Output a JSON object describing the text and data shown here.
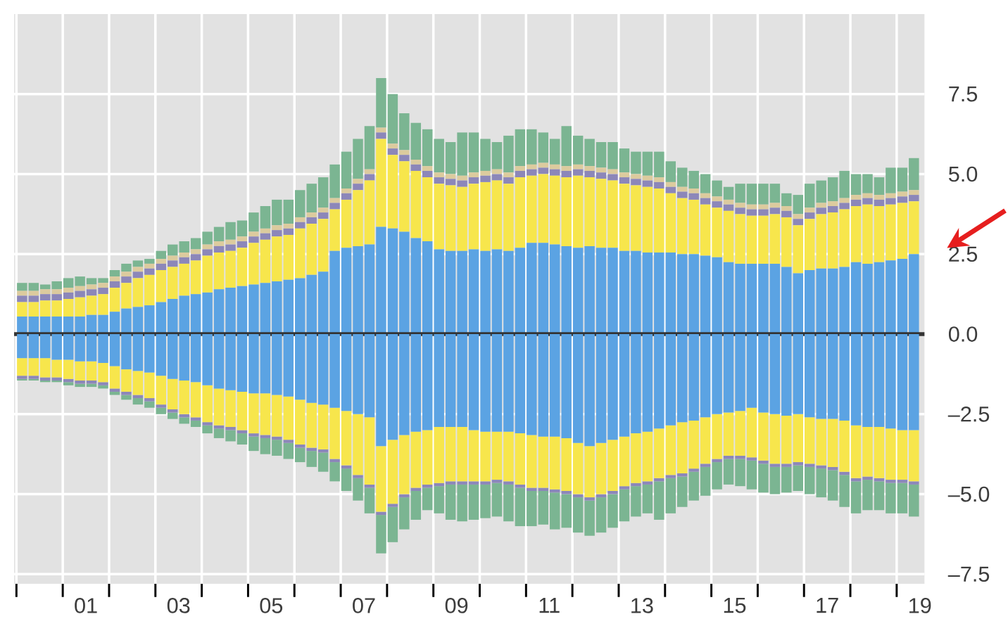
{
  "chart_data": {
    "type": "bar",
    "stacked": true,
    "grid": true,
    "x": [
      "2000-02-15",
      "2000-05-15",
      "2000-08-15",
      "2000-11-15",
      "2001-02-15",
      "2001-05-15",
      "2001-08-15",
      "2001-11-15",
      "2002-02-15",
      "2002-05-15",
      "2002-08-15",
      "2002-11-15",
      "2003-02-15",
      "2003-05-15",
      "2003-08-15",
      "2003-11-15",
      "2004-02-15",
      "2004-05-15",
      "2004-08-15",
      "2004-11-15",
      "2005-02-15",
      "2005-05-15",
      "2005-08-15",
      "2005-11-15",
      "2006-02-15",
      "2006-05-15",
      "2006-08-15",
      "2006-11-15",
      "2007-02-15",
      "2007-05-15",
      "2007-08-15",
      "2007-11-15",
      "2008-02-15",
      "2008-05-15",
      "2008-08-15",
      "2008-11-15",
      "2009-02-15",
      "2009-05-15",
      "2009-08-15",
      "2009-11-15",
      "2010-02-15",
      "2010-05-15",
      "2010-08-15",
      "2010-11-15",
      "2011-02-15",
      "2011-05-15",
      "2011-08-15",
      "2011-11-15",
      "2012-02-15",
      "2012-05-15",
      "2012-08-15",
      "2012-11-15",
      "2013-02-15",
      "2013-05-15",
      "2013-08-15",
      "2013-11-15",
      "2014-02-15",
      "2014-05-15",
      "2014-08-15",
      "2014-11-15",
      "2015-02-15",
      "2015-05-15",
      "2015-08-15",
      "2015-11-15",
      "2016-02-15",
      "2016-05-15",
      "2016-08-15",
      "2016-11-15",
      "2017-02-15",
      "2017-05-15",
      "2017-08-15",
      "2017-11-15",
      "2018-02-15",
      "2018-05-15",
      "2018-08-15",
      "2018-11-15",
      "2019-02-15",
      "2019-05-15"
    ],
    "xlim": [
      "1999-12-13",
      "2019-08-07"
    ],
    "xticks": [
      {
        "value": "2000-01-01",
        "label": null
      },
      {
        "value": "2001-01-01",
        "label": null
      },
      {
        "value": "2002-01-01",
        "label": null
      },
      {
        "value": "2003-01-01",
        "label": null
      },
      {
        "value": "2004-01-01",
        "label": null
      },
      {
        "value": "2005-01-01",
        "label": null
      },
      {
        "value": "2006-01-01",
        "label": null
      },
      {
        "value": "2007-01-01",
        "label": null
      },
      {
        "value": "2008-01-01",
        "label": null
      },
      {
        "value": "2009-01-01",
        "label": null
      },
      {
        "value": "2010-01-01",
        "label": null
      },
      {
        "value": "2011-01-01",
        "label": null
      },
      {
        "value": "2012-01-01",
        "label": null
      },
      {
        "value": "2013-01-01",
        "label": null
      },
      {
        "value": "2014-01-01",
        "label": null
      },
      {
        "value": "2015-01-01",
        "label": null
      },
      {
        "value": "2016-01-01",
        "label": null
      },
      {
        "value": "2017-01-01",
        "label": null
      },
      {
        "value": "2018-01-01",
        "label": null
      },
      {
        "value": "2019-01-01",
        "label": null
      },
      {
        "value": "2001-07-01",
        "label": "01"
      },
      {
        "value": "2003-07-01",
        "label": "03"
      },
      {
        "value": "2005-07-01",
        "label": "05"
      },
      {
        "value": "2007-07-01",
        "label": "07"
      },
      {
        "value": "2009-07-01",
        "label": "09"
      },
      {
        "value": "2011-07-01",
        "label": "11"
      },
      {
        "value": "2013-07-01",
        "label": "13"
      },
      {
        "value": "2015-07-01",
        "label": "15"
      },
      {
        "value": "2017-07-01",
        "label": "17"
      },
      {
        "value": "2019-07-01",
        "label": "19"
      }
    ],
    "ylim": [
      -7.8,
      10
    ],
    "yticks": [
      {
        "value": -7.5,
        "label": "–7.5"
      },
      {
        "value": -5,
        "label": "–5.0"
      },
      {
        "value": -2.5,
        "label": "–2.5"
      },
      {
        "value": 0,
        "label": "0.0"
      },
      2.5,
      {
        "value": 5,
        "label": "5.0"
      },
      7.5
    ],
    "ref_lines": [
      {
        "axis": "y",
        "value": 0,
        "color": "#333333"
      }
    ],
    "series": [
      {
        "color": "#5ba3e3",
        "values": [
          0.55,
          0.55,
          0.55,
          0.55,
          0.55,
          0.55,
          0.6,
          0.6,
          0.7,
          0.8,
          0.85,
          0.9,
          1.0,
          1.1,
          1.2,
          1.25,
          1.3,
          1.4,
          1.45,
          1.5,
          1.55,
          1.6,
          1.65,
          1.7,
          1.75,
          1.85,
          1.95,
          2.6,
          2.7,
          2.75,
          2.8,
          3.35,
          3.3,
          3.2,
          3.0,
          2.9,
          2.65,
          2.6,
          2.6,
          2.65,
          2.6,
          2.65,
          2.6,
          2.7,
          2.85,
          2.85,
          2.8,
          2.75,
          2.7,
          2.75,
          2.7,
          2.7,
          2.6,
          2.6,
          2.55,
          2.55,
          2.55,
          2.5,
          2.5,
          2.45,
          2.4,
          2.25,
          2.2,
          2.2,
          2.2,
          2.2,
          2.1,
          1.9,
          2.0,
          2.05,
          2.05,
          2.1,
          2.25,
          2.2,
          2.25,
          2.3,
          2.35,
          2.5
        ]
      },
      {
        "color": "#f7e64c",
        "values": [
          0.45,
          0.45,
          0.5,
          0.5,
          0.55,
          0.6,
          0.6,
          0.65,
          0.75,
          0.8,
          0.9,
          0.95,
          1.0,
          1.0,
          1.0,
          1.05,
          1.15,
          1.15,
          1.15,
          1.2,
          1.3,
          1.35,
          1.4,
          1.4,
          1.55,
          1.6,
          1.65,
          1.3,
          1.5,
          1.75,
          2.0,
          2.75,
          2.3,
          2.2,
          2.1,
          2.0,
          2.05,
          2.05,
          2.0,
          2.05,
          2.15,
          2.15,
          2.1,
          2.2,
          2.1,
          2.15,
          2.15,
          2.15,
          2.25,
          2.15,
          2.15,
          2.1,
          2.1,
          2.05,
          2.05,
          2.0,
          1.85,
          1.75,
          1.7,
          1.6,
          1.55,
          1.6,
          1.55,
          1.5,
          1.5,
          1.55,
          1.55,
          1.5,
          1.6,
          1.7,
          1.75,
          1.8,
          1.75,
          1.85,
          1.75,
          1.75,
          1.75,
          1.65
        ]
      },
      {
        "color": "#8c87b9",
        "values": [
          0.2,
          0.2,
          0.2,
          0.2,
          0.2,
          0.2,
          0.2,
          0.2,
          0.2,
          0.2,
          0.2,
          0.2,
          0.2,
          0.2,
          0.2,
          0.2,
          0.2,
          0.2,
          0.2,
          0.2,
          0.2,
          0.2,
          0.2,
          0.2,
          0.2,
          0.2,
          0.2,
          0.2,
          0.2,
          0.2,
          0.2,
          0.2,
          0.2,
          0.2,
          0.2,
          0.2,
          0.2,
          0.2,
          0.2,
          0.2,
          0.2,
          0.2,
          0.2,
          0.2,
          0.2,
          0.2,
          0.2,
          0.2,
          0.2,
          0.2,
          0.2,
          0.2,
          0.2,
          0.2,
          0.2,
          0.2,
          0.2,
          0.2,
          0.2,
          0.2,
          0.2,
          0.2,
          0.2,
          0.2,
          0.2,
          0.2,
          0.2,
          0.2,
          0.2,
          0.2,
          0.2,
          0.2,
          0.2,
          0.2,
          0.2,
          0.2,
          0.2,
          0.2
        ]
      },
      {
        "color": "#dccb9e",
        "values": [
          0.15,
          0.15,
          0.15,
          0.15,
          0.15,
          0.15,
          0.15,
          0.15,
          0.15,
          0.15,
          0.15,
          0.15,
          0.15,
          0.15,
          0.15,
          0.15,
          0.15,
          0.15,
          0.15,
          0.15,
          0.15,
          0.15,
          0.15,
          0.15,
          0.15,
          0.15,
          0.15,
          0.15,
          0.15,
          0.15,
          0.15,
          0.15,
          0.15,
          0.15,
          0.15,
          0.15,
          0.15,
          0.15,
          0.15,
          0.15,
          0.15,
          0.15,
          0.15,
          0.15,
          0.15,
          0.15,
          0.15,
          0.15,
          0.15,
          0.15,
          0.15,
          0.15,
          0.15,
          0.15,
          0.15,
          0.15,
          0.15,
          0.15,
          0.15,
          0.15,
          0.15,
          0.15,
          0.15,
          0.15,
          0.15,
          0.15,
          0.15,
          0.15,
          0.15,
          0.15,
          0.15,
          0.15,
          0.15,
          0.15,
          0.15,
          0.15,
          0.15,
          0.15
        ]
      },
      {
        "color": "#7bb592",
        "values": [
          0.25,
          0.25,
          0.15,
          0.25,
          0.3,
          0.3,
          0.2,
          0.15,
          0.2,
          0.25,
          0.2,
          0.15,
          0.25,
          0.35,
          0.35,
          0.35,
          0.4,
          0.45,
          0.55,
          0.5,
          0.6,
          0.7,
          0.8,
          0.75,
          0.85,
          0.9,
          0.95,
          1.05,
          1.15,
          1.25,
          1.35,
          1.55,
          1.55,
          1.15,
          1.15,
          1.15,
          1.05,
          1.0,
          1.35,
          1.25,
          1.0,
          0.85,
          1.15,
          1.15,
          1.1,
          0.95,
          0.8,
          1.25,
          0.9,
          0.85,
          0.8,
          0.85,
          0.75,
          0.7,
          0.75,
          0.8,
          0.65,
          0.6,
          0.55,
          0.6,
          0.5,
          0.4,
          0.6,
          0.65,
          0.65,
          0.6,
          0.4,
          0.6,
          0.75,
          0.7,
          0.75,
          0.85,
          0.65,
          0.6,
          0.55,
          0.8,
          0.75,
          1.0
        ]
      },
      {
        "color": "#5ba3e3",
        "values": [
          -0.75,
          -0.75,
          -0.75,
          -0.8,
          -0.8,
          -0.85,
          -0.85,
          -0.9,
          -1.0,
          -1.1,
          -1.15,
          -1.2,
          -1.3,
          -1.4,
          -1.45,
          -1.5,
          -1.6,
          -1.7,
          -1.75,
          -1.8,
          -1.85,
          -1.85,
          -1.9,
          -1.95,
          -2.05,
          -2.15,
          -2.2,
          -2.3,
          -2.4,
          -2.5,
          -2.6,
          -3.5,
          -3.3,
          -3.15,
          -3.05,
          -3.0,
          -2.9,
          -2.9,
          -2.9,
          -3.0,
          -3.05,
          -3.05,
          -3.05,
          -3.1,
          -3.15,
          -3.2,
          -3.2,
          -3.25,
          -3.4,
          -3.5,
          -3.4,
          -3.3,
          -3.2,
          -3.1,
          -3.05,
          -2.95,
          -2.85,
          -2.75,
          -2.7,
          -2.6,
          -2.5,
          -2.45,
          -2.4,
          -2.3,
          -2.45,
          -2.5,
          -2.55,
          -2.5,
          -2.6,
          -2.65,
          -2.65,
          -2.7,
          -2.85,
          -2.9,
          -2.9,
          -2.95,
          -3.0,
          -3.0
        ]
      },
      {
        "color": "#f7e64c",
        "values": [
          -0.55,
          -0.55,
          -0.6,
          -0.55,
          -0.6,
          -0.6,
          -0.6,
          -0.6,
          -0.7,
          -0.7,
          -0.75,
          -0.8,
          -0.9,
          -0.95,
          -1.05,
          -1.1,
          -1.15,
          -1.15,
          -1.15,
          -1.2,
          -1.25,
          -1.3,
          -1.3,
          -1.35,
          -1.4,
          -1.4,
          -1.4,
          -1.6,
          -1.7,
          -1.9,
          -2.1,
          -2.05,
          -2.0,
          -1.85,
          -1.75,
          -1.7,
          -1.75,
          -1.7,
          -1.7,
          -1.6,
          -1.55,
          -1.5,
          -1.55,
          -1.6,
          -1.65,
          -1.6,
          -1.65,
          -1.65,
          -1.6,
          -1.6,
          -1.6,
          -1.6,
          -1.55,
          -1.55,
          -1.55,
          -1.55,
          -1.55,
          -1.6,
          -1.5,
          -1.45,
          -1.4,
          -1.35,
          -1.4,
          -1.55,
          -1.5,
          -1.55,
          -1.5,
          -1.5,
          -1.45,
          -1.45,
          -1.5,
          -1.6,
          -1.65,
          -1.55,
          -1.6,
          -1.6,
          -1.55,
          -1.6
        ]
      },
      {
        "color": "#8c87b9",
        "values": [
          -0.1,
          -0.1,
          -0.1,
          -0.1,
          -0.1,
          -0.1,
          -0.1,
          -0.1,
          -0.1,
          -0.1,
          -0.1,
          -0.1,
          -0.1,
          -0.1,
          -0.1,
          -0.1,
          -0.1,
          -0.1,
          -0.1,
          -0.1,
          -0.1,
          -0.1,
          -0.1,
          -0.1,
          -0.1,
          -0.1,
          -0.1,
          -0.1,
          -0.1,
          -0.1,
          -0.1,
          -0.1,
          -0.1,
          -0.1,
          -0.1,
          -0.1,
          -0.1,
          -0.1,
          -0.1,
          -0.1,
          -0.1,
          -0.1,
          -0.1,
          -0.1,
          -0.1,
          -0.1,
          -0.1,
          -0.1,
          -0.1,
          -0.1,
          -0.1,
          -0.1,
          -0.1,
          -0.1,
          -0.1,
          -0.1,
          -0.1,
          -0.1,
          -0.1,
          -0.1,
          -0.1,
          -0.1,
          -0.1,
          -0.1,
          -0.1,
          -0.1,
          -0.1,
          -0.1,
          -0.1,
          -0.1,
          -0.1,
          -0.1,
          -0.1,
          -0.1,
          -0.1,
          -0.1,
          -0.1,
          -0.1
        ]
      },
      {
        "color": "#7bb592",
        "values": [
          -0.05,
          -0.05,
          -0.05,
          -0.05,
          -0.1,
          -0.1,
          -0.1,
          -0.1,
          -0.1,
          -0.15,
          -0.2,
          -0.2,
          -0.2,
          -0.2,
          -0.2,
          -0.2,
          -0.25,
          -0.3,
          -0.35,
          -0.35,
          -0.45,
          -0.5,
          -0.5,
          -0.5,
          -0.45,
          -0.5,
          -0.6,
          -0.6,
          -0.7,
          -0.7,
          -0.8,
          -1.2,
          -1.1,
          -1.0,
          -0.9,
          -0.7,
          -0.85,
          -1.1,
          -1.15,
          -1.1,
          -1.05,
          -1.05,
          -1.15,
          -1.2,
          -1.1,
          -1.05,
          -1.15,
          -1.05,
          -1.1,
          -1.1,
          -1.1,
          -1.05,
          -1.0,
          -0.95,
          -0.9,
          -1.2,
          -1.1,
          -0.95,
          -0.9,
          -0.9,
          -0.85,
          -0.8,
          -0.85,
          -0.9,
          -0.9,
          -0.85,
          -0.8,
          -0.8,
          -0.85,
          -0.9,
          -0.95,
          -1.0,
          -1.0,
          -0.95,
          -0.9,
          -0.95,
          -0.95,
          -1.0
        ]
      }
    ]
  }
}
